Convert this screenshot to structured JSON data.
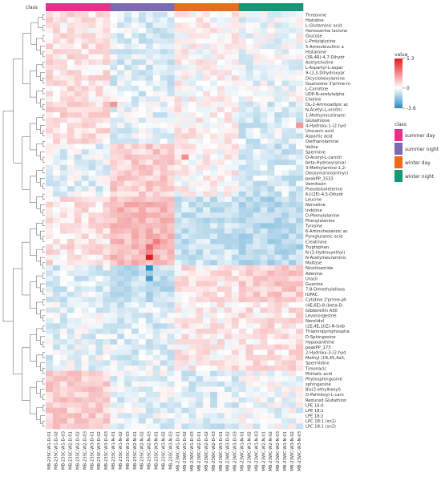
{
  "chart_data": {
    "type": "heatmap",
    "title": "",
    "class_bar_label": "class",
    "classes": [
      {
        "name": "summer day",
        "color": "#e5318b"
      },
      {
        "name": "summer night",
        "color": "#7b6bb0"
      },
      {
        "name": "winter day",
        "color": "#ee6a1c"
      },
      {
        "name": "winter night",
        "color": "#139877"
      }
    ],
    "rows": [
      "Threonine",
      "Histidine",
      "L-Glutaminic acid",
      "Homoserine lactone",
      "Glucose",
      "L-Prolylglycine",
      "5-Aminolevulinic a",
      "Histamine",
      "(3R,4R)-4,7-Dihydr",
      "Acetylcholine",
      "L-Aspartyl-L-aspar",
      "9-(2,3-Dihydroxypr",
      "Dicyclohexylamine",
      "Guanosine 3'prime-m",
      "L-Carnitine",
      "UDP-N-acetylalpha",
      "Choline",
      "DL-2-Aminoadipic ac",
      "N-Acetyl-L-ornithi",
      "1-Methylnicotinami",
      "Glutathione",
      "4-Hydroxy-1-(2-hyd",
      "Urocanic acid",
      "Aspartic acid",
      "Diethanolamine",
      "Valine",
      "Spermine",
      "O-Acetyl-L-carniti",
      "beta-Hydroxyisoval",
      "3-Methylamino-1,2-",
      "Deoxymannojirimyci",
      "peakPP_1533",
      "Vomitoxin",
      "Pseudoisoleterine",
      "6-[(2E)-4,5-Dihydr",
      "Leucine",
      "Norvaline",
      "Indoline",
      "D-Phenylalanine",
      "Phenylalanine",
      "Tyrosine",
      "6-Aminohexanoic ac",
      "Pyroglutamic acid",
      "Creatinine",
      "Tryptophan",
      "N-(2-Hydroxyethyl)",
      "N-Acetylneuraminic",
      "Maltose",
      "Nicotinamide",
      "Adenine",
      "Uracil",
      "Guanine",
      "7,8-Dimethylalloxa",
      "IUPAC",
      "Cytidine 2'prime-ph",
      "(4E,6E)-8-(beta-D-",
      "Gibberellin A30",
      "Levonorgestrel",
      "Nerolidol",
      "(2E,4E,10Z)-N-Isob",
      "Thiaminpyrophospha",
      "D-Sphingosine",
      "Hypoxanthine",
      "peakPP_173",
      "2-Hydroxy-3-(2-hyd",
      "Methyl (1R,4S,4aS,",
      "Spermidine",
      "Timonacic",
      "Phthalic acid",
      "Phytosphingosine",
      "sphinganine",
      "Bis(2-ethylhexyl)",
      "O-Palmitoyl-L-carn",
      "Reduced Glutathion",
      "LPE 16:0",
      "LPE 18:1",
      "LPE 18:2",
      "LPC 18:1 (sn1)",
      "LPC 18:1 (sn2)"
    ],
    "columns": [
      "MB-23SC-W1-D-01",
      "MB-23SC-W1-D-02",
      "MB-23SC-W1-D-03",
      "MB-23SC-W2-D-01",
      "MB-23SC-W2-D-02",
      "MB-23SC-W2-D-03",
      "MB-23SC-W3-D-01",
      "MB-23SC-W3-D-02",
      "MB-23SC-W3-D-03",
      "MB-23SC-W1-N-01",
      "MB-23SC-W1-N-02",
      "MB-23SC-W1-N-03",
      "MB-23SC-W2-N-01",
      "MB-23SC-W2-N-02",
      "MB-23SC-W2-N-03",
      "MB-23SC-W3-N-01",
      "MB-23SC-W3-N-02",
      "MB-23SC-W3-N-03",
      "MB-23WC-W1-D-01",
      "MB-23WC-W1-D-02",
      "MB-23WC-W1-D-03",
      "MB-23WC-W2-D-01",
      "MB-23WC-W2-D-02",
      "MB-23WC-W2-D-03",
      "MB-23WC-W3-D-01",
      "MB-23WC-W3-D-02",
      "MB-23WC-W3-D-03",
      "MB-23WC-W1-N-01",
      "MB-23WC-W1-N-02",
      "MB-23WC-W1-N-03",
      "MB-23WC-W2-N-01",
      "MB-23WC-W2-N-02",
      "MB-23WC-W2-N-03",
      "MB-23WC-W3-N-01",
      "MB-23WC-W3-N-02",
      "MB-23WC-W3-N-03"
    ],
    "column_classes": [
      0,
      0,
      0,
      0,
      0,
      0,
      0,
      0,
      0,
      1,
      1,
      1,
      1,
      1,
      1,
      1,
      1,
      1,
      2,
      2,
      2,
      2,
      2,
      2,
      2,
      2,
      2,
      3,
      3,
      3,
      3,
      3,
      3,
      3,
      3,
      3
    ],
    "color_scale": {
      "label": "value",
      "min": -3.6,
      "max": 5.3,
      "mid": 0,
      "tick_labels": [
        "5.3",
        "0",
        "-3.6"
      ],
      "low_color": "#2b8cc4",
      "mid_color": "#ffffff",
      "high_color": "#e41a1c"
    },
    "block_effects": [
      [
        0.3,
        -0.3,
        0.1,
        -0.1
      ],
      [
        0.4,
        -0.2,
        0.2,
        -0.3
      ],
      [
        -0.2,
        0.6,
        0.1,
        -0.4
      ],
      [
        0.3,
        0.9,
        -0.5,
        -0.7
      ],
      [
        -0.3,
        -0.6,
        0.3,
        0.6
      ],
      [
        -0.2,
        -0.3,
        0.2,
        0.3
      ],
      [
        0.6,
        -0.2,
        -0.3,
        -0.1
      ]
    ],
    "row_blocks": [
      0,
      0,
      0,
      0,
      0,
      0,
      0,
      0,
      0,
      0,
      0,
      0,
      0,
      0,
      0,
      0,
      0,
      1,
      1,
      1,
      1,
      1,
      1,
      1,
      1,
      2,
      2,
      2,
      2,
      2,
      2,
      2,
      2,
      2,
      2,
      3,
      3,
      3,
      3,
      3,
      3,
      3,
      3,
      3,
      3,
      3,
      3,
      3,
      4,
      4,
      4,
      4,
      4,
      4,
      4,
      5,
      5,
      5,
      5,
      5,
      5,
      5,
      5,
      5,
      5,
      5,
      5,
      5,
      6,
      6,
      6,
      6,
      6,
      6,
      6,
      6,
      6,
      6,
      6
    ],
    "highlights": [
      {
        "row": 46,
        "col": 14,
        "value": 5.3
      },
      {
        "row": 45,
        "col": 14,
        "value": 2.4
      },
      {
        "row": 17,
        "col": 9,
        "value": 2.0
      },
      {
        "row": 27,
        "col": 19,
        "value": 2.2
      },
      {
        "row": 21,
        "col": 35,
        "value": 2.0
      },
      {
        "row": 48,
        "col": 14,
        "value": -3.6
      },
      {
        "row": 50,
        "col": 14,
        "value": -3.0
      },
      {
        "row": 44,
        "col": 14,
        "value": 3.0
      },
      {
        "row": 43,
        "col": 15,
        "value": 2.6
      }
    ]
  }
}
